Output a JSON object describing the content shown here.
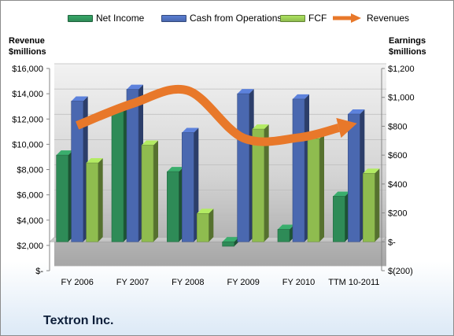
{
  "company_label": "Textron Inc.",
  "legend": [
    {
      "label": "Net Income",
      "kind": "bar",
      "color": "#2e8b57"
    },
    {
      "label": "Cash from Operations",
      "kind": "bar",
      "color": "#4a68b0"
    },
    {
      "label": "FCF",
      "kind": "bar",
      "color": "#8fbc4f"
    },
    {
      "label": "Revenues",
      "kind": "arrow",
      "color": "#e8782a"
    }
  ],
  "chart_data": {
    "type": "bar",
    "categories": [
      "FY 2006",
      "FY 2007",
      "FY 2008",
      "FY 2009",
      "FY 2010",
      "TTM 10-2011"
    ],
    "left_axis": {
      "title_line1": "Revenue",
      "title_line2": "$millions",
      "ylim": [
        0,
        16000
      ],
      "ticks": [
        0,
        2000,
        4000,
        6000,
        8000,
        10000,
        12000,
        14000,
        16000
      ],
      "tick_labels": [
        "$-",
        "$2,000",
        "$4,000",
        "$6,000",
        "$8,000",
        "$10,000",
        "$12,000",
        "$14,000",
        "$16,000"
      ]
    },
    "right_axis": {
      "title_line1": "Earnings",
      "title_line2": "$millions",
      "ylim": [
        -200,
        1200
      ],
      "ticks": [
        -200,
        0,
        200,
        400,
        600,
        800,
        1000,
        1200
      ],
      "tick_labels": [
        "$(200)",
        "$-",
        "$200",
        "$400",
        "$600",
        "$800",
        "$1,000",
        "$1,200"
      ]
    },
    "series": [
      {
        "name": "Net Income",
        "type": "bar",
        "axis": "right",
        "color": "#2e8b57",
        "values": [
          600,
          917,
          486,
          -31,
          86,
          315
        ]
      },
      {
        "name": "Cash from Operations",
        "type": "bar",
        "axis": "right",
        "color": "#4a68b0",
        "values": [
          974,
          1055,
          756,
          1025,
          988,
          884
        ]
      },
      {
        "name": "FCF",
        "type": "bar",
        "axis": "right",
        "color": "#8fbc4f",
        "values": [
          546,
          669,
          196,
          780,
          714,
          474
        ]
      },
      {
        "name": "Revenues",
        "type": "line",
        "axis": "left",
        "color": "#e8782a",
        "values": [
          11490,
          13225,
          14246,
          10500,
          10525,
          11600
        ]
      }
    ]
  }
}
